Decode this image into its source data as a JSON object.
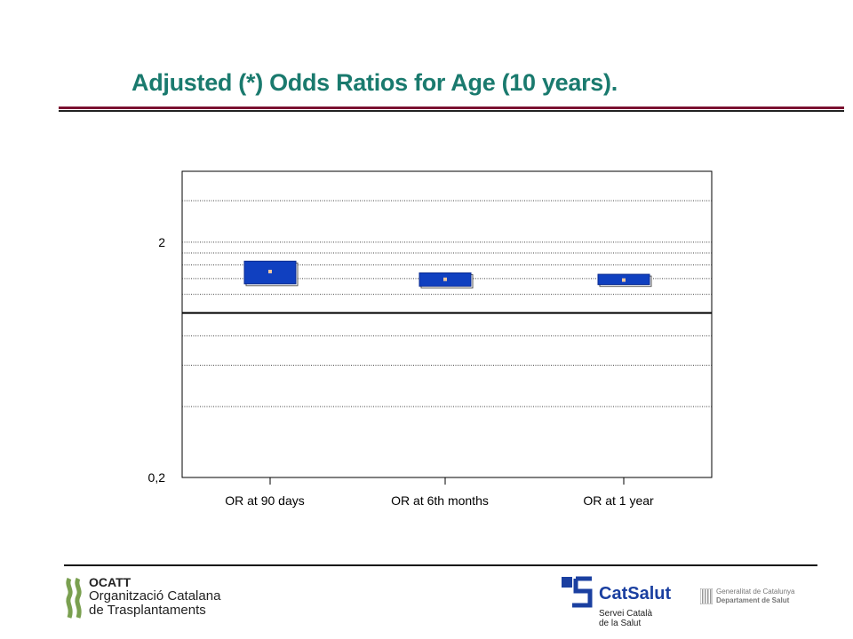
{
  "title": "Adjusted (*) Odds Ratios for Age (10 years).",
  "chart_data": {
    "type": "box",
    "title": "Adjusted (*) Odds Ratios for Age (10 years).",
    "y_scale": "log",
    "ylim": [
      0.2,
      4
    ],
    "y_tick_labels": [
      "0,2",
      "2"
    ],
    "y_ticks": [
      0.2,
      2
    ],
    "reference_line": 1,
    "categories": [
      "OR at 90 days",
      "OR at 6th months",
      "OR at 1 year"
    ],
    "series": [
      {
        "low": [
          1.33,
          1.3,
          1.32
        ],
        "estimate": [
          1.5,
          1.39,
          1.38
        ],
        "high": [
          1.66,
          1.48,
          1.46
        ]
      }
    ],
    "grid": true,
    "box_color": "#1040c0",
    "estimate_marker_color": "#f0c8a0"
  },
  "footer": {
    "ocatt_line1": "OCATT",
    "ocatt_line2": "Organització Catalana",
    "ocatt_line3": "de Trasplantaments",
    "catsalut": "CatSalut",
    "catsalut_sub1": "Servei Català",
    "catsalut_sub2": "de la Salut",
    "gencat_line1": "Generalitat de Catalunya",
    "gencat_line2": "Departament de Salut"
  }
}
